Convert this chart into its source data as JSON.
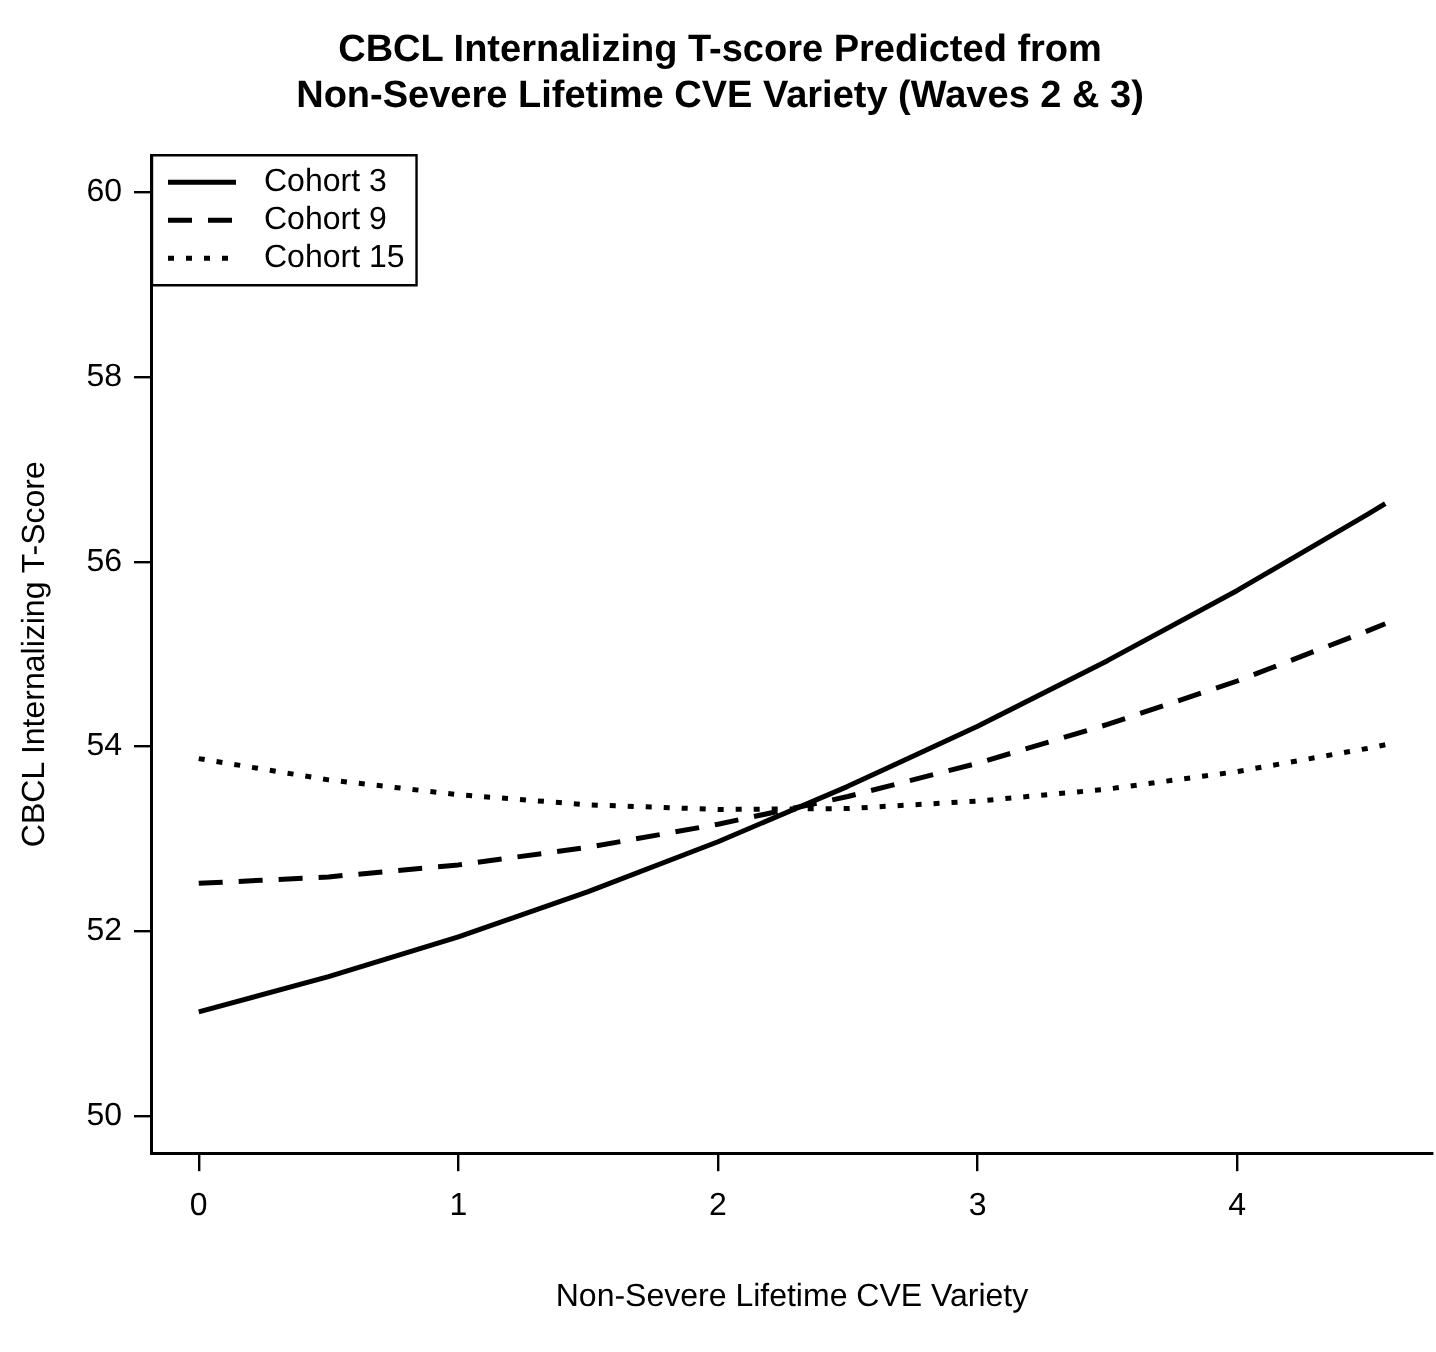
{
  "chart_data": {
    "type": "line",
    "title": "CBCL Internalizing T-score Predicted from\nNon-Severe Lifetime CVE Variety (Waves 2 & 3)",
    "xlabel": "Non-Severe Lifetime CVE Variety",
    "ylabel": "CBCL Internalizing T-Score",
    "x": [
      0,
      0.5,
      1,
      1.5,
      2,
      2.5,
      3,
      3.5,
      4,
      4.5,
      4.57
    ],
    "series": [
      {
        "name": "Cohort 3",
        "color": "#000000",
        "line_style": "solid",
        "values": [
          51.13,
          51.51,
          51.94,
          52.43,
          52.97,
          53.57,
          54.22,
          54.93,
          55.69,
          56.51,
          56.63
        ]
      },
      {
        "name": "Cohort 9",
        "color": "#000000",
        "line_style": "dashed",
        "values": [
          52.52,
          52.59,
          52.72,
          52.91,
          53.16,
          53.46,
          53.82,
          54.24,
          54.71,
          55.25,
          55.33
        ]
      },
      {
        "name": "Cohort 15",
        "color": "#000000",
        "line_style": "dotted",
        "values": [
          53.87,
          53.64,
          53.48,
          53.37,
          53.32,
          53.33,
          53.41,
          53.54,
          53.73,
          53.98,
          54.02
        ]
      }
    ],
    "xlim": [
      -0.18,
      4.75
    ],
    "xticks": [
      0,
      1,
      2,
      3,
      4
    ],
    "ylim": [
      49.6,
      60.4
    ],
    "yticks": [
      50,
      52,
      54,
      56,
      58,
      60
    ],
    "grid": false,
    "legend": "top left",
    "marker": "none"
  }
}
